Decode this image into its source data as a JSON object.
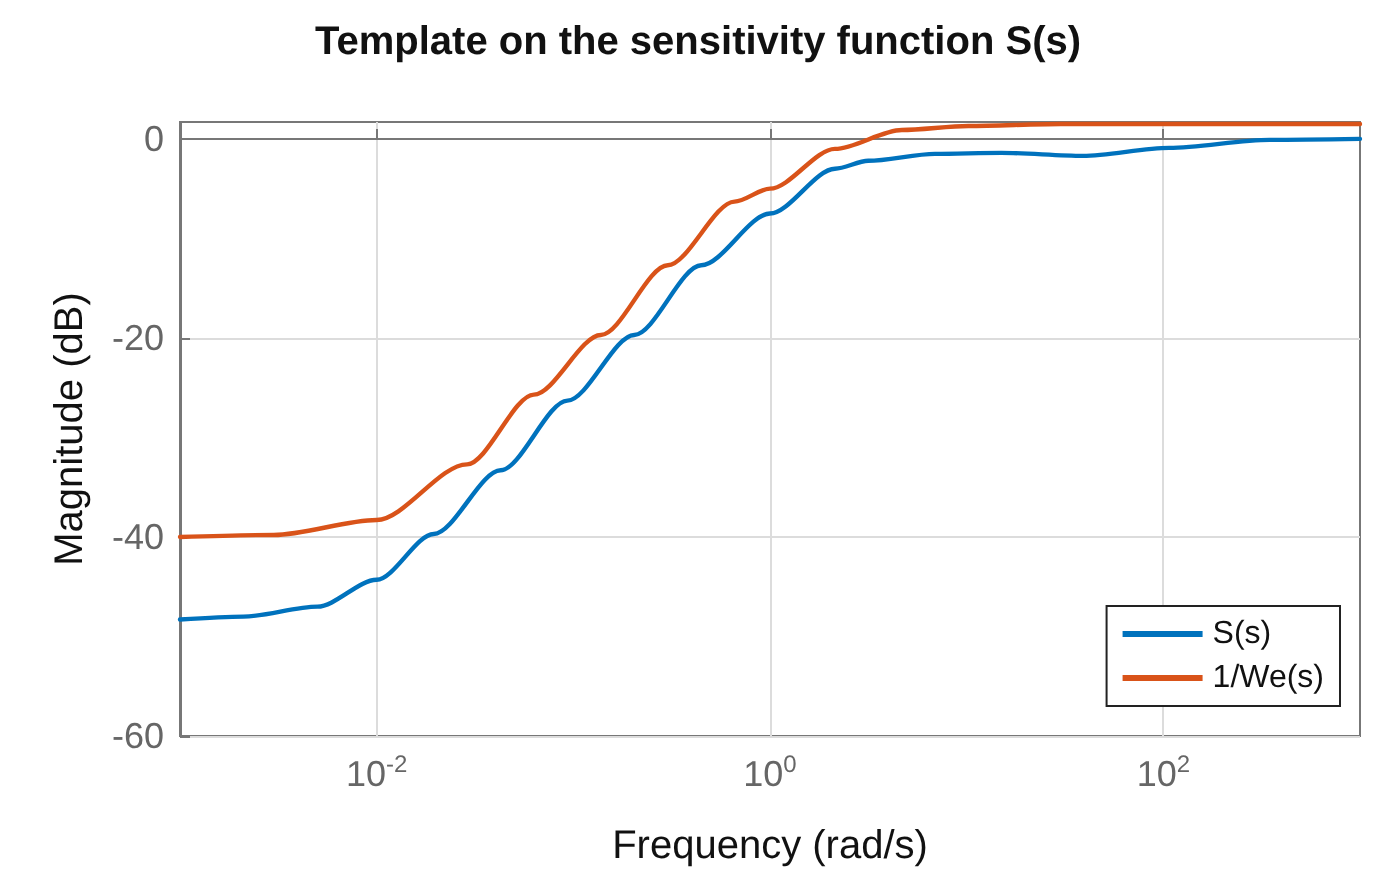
{
  "chart_data": {
    "type": "line",
    "title": "Template on the sensitivity function S(s)",
    "xlabel": "Frequency (rad/s)",
    "ylabel": "Magnitude (dB)",
    "log": "x",
    "xlim": [
      0.001,
      1000
    ],
    "xticks": [
      {
        "value": 0.01,
        "label": "10$^{-2}$"
      },
      {
        "value": 1,
        "label": "10$^{0}$"
      },
      {
        "value": 100,
        "label": "10$^{2}$"
      }
    ],
    "ylim": [
      -60,
      1.7
    ],
    "yticks": [
      -60,
      -40,
      -20,
      0
    ],
    "grid": true,
    "legend": "bottom right",
    "marker": "none",
    "line_style": "solid",
    "series": [
      {
        "name": "S(s)",
        "color": "#0072bd",
        "x": [
          0.001,
          0.0021,
          0.005,
          0.01,
          0.0195,
          0.0427,
          0.0933,
          0.204,
          0.447,
          1,
          2.14,
          3.16,
          6.9,
          15,
          39,
          107,
          347,
          1000
        ],
        "values": [
          -48.3,
          -48,
          -47,
          -44.3,
          -39.7,
          -33.3,
          -26.3,
          -19.7,
          -12.7,
          -7.5,
          -3,
          -2.2,
          -1.5,
          -1.4,
          -1.7,
          -0.9,
          -0.1,
          0
        ]
      },
      {
        "name": "1/We(s)",
        "color": "#d95319",
        "x": [
          0.001,
          0.003,
          0.01,
          0.0288,
          0.063,
          0.138,
          0.302,
          0.66,
          1,
          2.14,
          4.68,
          10.2,
          30,
          100,
          1000
        ],
        "values": [
          -40,
          -39.8,
          -38.3,
          -32.7,
          -25.7,
          -19.7,
          -12.7,
          -6.3,
          -5,
          -1,
          0.9,
          1.3,
          1.5,
          1.5,
          1.5
        ]
      }
    ]
  }
}
